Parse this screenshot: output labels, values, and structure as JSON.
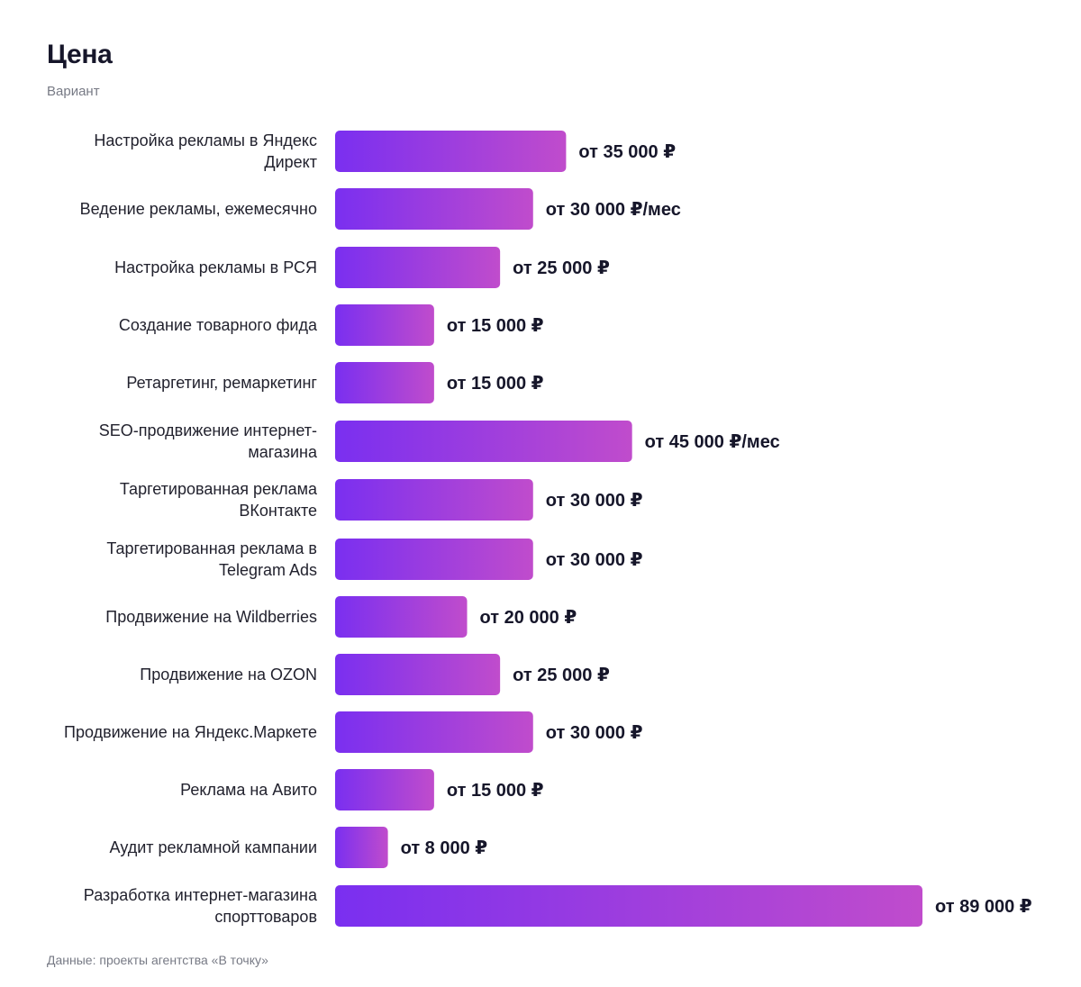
{
  "chart_data": {
    "type": "bar",
    "orientation": "horizontal",
    "title": "Цена",
    "subtitle": "Вариант",
    "source": "Данные: проекты агентства «В точку»",
    "categories": [
      "Настройка рекламы в Яндекс Директ",
      "Ведение рекламы, ежемесячно",
      "Настройка рекламы в РСЯ",
      "Создание товарного фида",
      "Ретаргетинг, ремаркетинг",
      "SEO-продвижение интернет-магазина",
      "Таргетированная реклама ВКонтакте",
      "Таргетированная реклама в Telegram Ads",
      "Продвижение на Wildberries",
      "Продвижение на OZON",
      "Продвижение на Яндекс.Маркете",
      "Реклама на Авито",
      "Аудит рекламной кампании",
      "Разработка интернет-магазина спорттоваров"
    ],
    "values": [
      35000,
      30000,
      25000,
      15000,
      15000,
      45000,
      30000,
      30000,
      20000,
      25000,
      30000,
      15000,
      8000,
      89000
    ],
    "value_labels": [
      "от 35 000 ₽",
      "от 30 000 ₽/мес",
      "от 25 000 ₽",
      "от 15 000 ₽",
      "от 15 000 ₽",
      "от 45 000 ₽/мес",
      "от 30 000 ₽",
      "от 30 000 ₽",
      "от 20 000 ₽",
      "от 25 000 ₽",
      "от 30 000 ₽",
      "от 15 000 ₽",
      "от 8 000 ₽",
      "от 89 000 ₽"
    ],
    "xlim": [
      0,
      89000
    ],
    "grid": false,
    "legend": "none",
    "colors": {
      "bar_start": "#7a2ff0",
      "bar_end": "#c04ccc"
    }
  }
}
